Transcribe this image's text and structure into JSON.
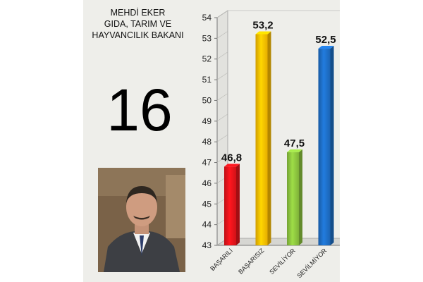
{
  "header": {
    "line1": "MEHDİ EKER",
    "line2": "GIDA, TARIM VE",
    "line3": "HAYVANCILIK BAKANI"
  },
  "rank": "16",
  "photo": {
    "icon": "portrait-photo-icon"
  },
  "chart_data": {
    "type": "bar",
    "categories": [
      "BAŞARILI",
      "BAŞARISIZ",
      "SEVİLİYOR",
      "SEVİLMİYOR"
    ],
    "values": [
      46.8,
      53.2,
      47.5,
      52.5
    ],
    "value_labels": [
      "46,8",
      "53,2",
      "47,5",
      "52,5"
    ],
    "colors": [
      "#e8141b",
      "#ffc000",
      "#8dc63f",
      "#1e6fc7"
    ],
    "ylim": [
      43,
      54
    ],
    "yticks": [
      43,
      44,
      45,
      46,
      47,
      48,
      49,
      50,
      51,
      52,
      53,
      54
    ],
    "grid": false,
    "style": "3d"
  }
}
